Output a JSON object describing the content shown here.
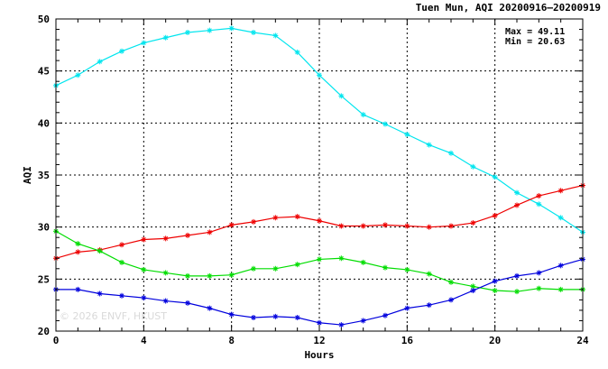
{
  "title": "Tuen Mun, AQI 20200916–20200919",
  "stats": {
    "max_label": "Max = 49.11",
    "min_label": "Min = 20.63"
  },
  "watermark": "© 2026  ENVF, HKUST",
  "chart_data": {
    "type": "line",
    "xlabel": "Hours",
    "ylabel": "AQI",
    "xlim": [
      0,
      24
    ],
    "ylim": [
      20,
      50
    ],
    "xticks": [
      0,
      4,
      8,
      12,
      16,
      20,
      24
    ],
    "yticks": [
      20,
      25,
      30,
      35,
      40,
      45,
      50
    ],
    "grid": true,
    "x": [
      0,
      1,
      2,
      3,
      4,
      5,
      6,
      7,
      8,
      9,
      10,
      11,
      12,
      13,
      14,
      15,
      16,
      17,
      18,
      19,
      20,
      21,
      22,
      23,
      24
    ],
    "series": [
      {
        "color": "#00e5ee",
        "values": [
          43.6,
          44.6,
          45.9,
          46.9,
          47.7,
          48.2,
          48.7,
          48.9,
          49.1,
          48.7,
          48.4,
          46.8,
          44.6,
          42.6,
          40.8,
          39.9,
          38.9,
          37.9,
          37.1,
          35.8,
          34.8,
          33.3,
          32.2,
          30.9,
          29.5
        ]
      },
      {
        "color": "#ee0000",
        "values": [
          27.0,
          27.6,
          27.8,
          28.3,
          28.8,
          28.9,
          29.2,
          29.5,
          30.2,
          30.5,
          30.9,
          31.0,
          30.6,
          30.1,
          30.1,
          30.2,
          30.1,
          30.0,
          30.1,
          30.4,
          31.1,
          32.1,
          33.0,
          33.5,
          34.0
        ]
      },
      {
        "color": "#00dd00",
        "values": [
          29.6,
          28.4,
          27.7,
          26.6,
          25.9,
          25.6,
          25.3,
          25.3,
          25.4,
          26.0,
          26.0,
          26.4,
          26.9,
          27.0,
          26.6,
          26.1,
          25.9,
          25.5,
          24.7,
          24.3,
          23.9,
          23.8,
          24.1,
          24.0,
          24.0
        ]
      },
      {
        "color": "#0000dd",
        "values": [
          24.0,
          24.0,
          23.6,
          23.4,
          23.2,
          22.9,
          22.7,
          22.2,
          21.6,
          21.3,
          21.4,
          21.3,
          20.8,
          20.6,
          21.0,
          21.5,
          22.2,
          22.5,
          23.0,
          23.9,
          24.8,
          25.3,
          25.6,
          26.3,
          26.9
        ]
      }
    ]
  }
}
